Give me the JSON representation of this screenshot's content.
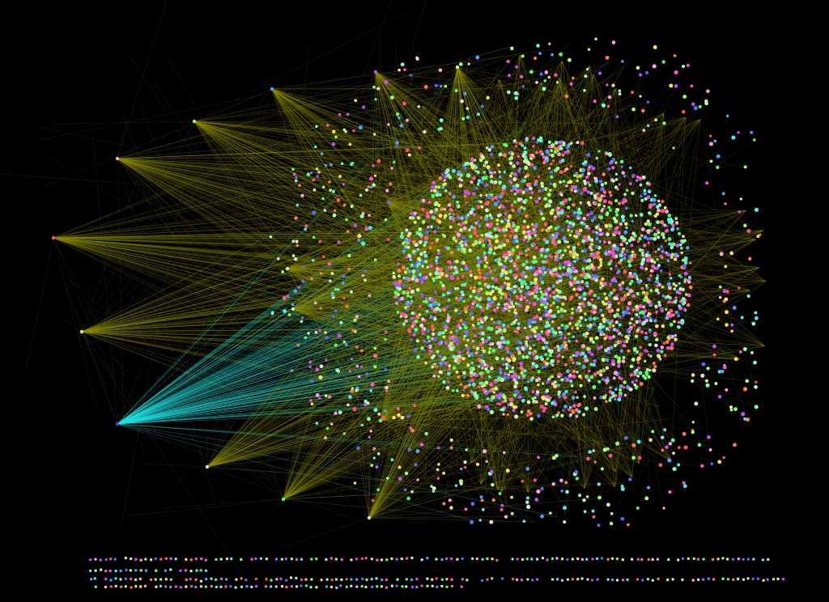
{
  "graph": {
    "background_color": "#000000",
    "edge_color_primary": "#8a8a00",
    "edge_color_secondary": "#9a9a30",
    "edge_color_highlight": "#20e0e0",
    "node_palette": [
      "#ff4fd8",
      "#4fff6a",
      "#5a6bff",
      "#ffe44f",
      "#4fe8ff",
      "#c84fff",
      "#ff7a4f",
      "#9dff4f",
      "#ff4f7a",
      "#4fa0ff",
      "#e0e0e0",
      "#b0ff9a",
      "#ffa0e8",
      "#7affd0"
    ],
    "hub_color": "#4fff9a",
    "hub_color_highlight": "#3a4fff"
  }
}
